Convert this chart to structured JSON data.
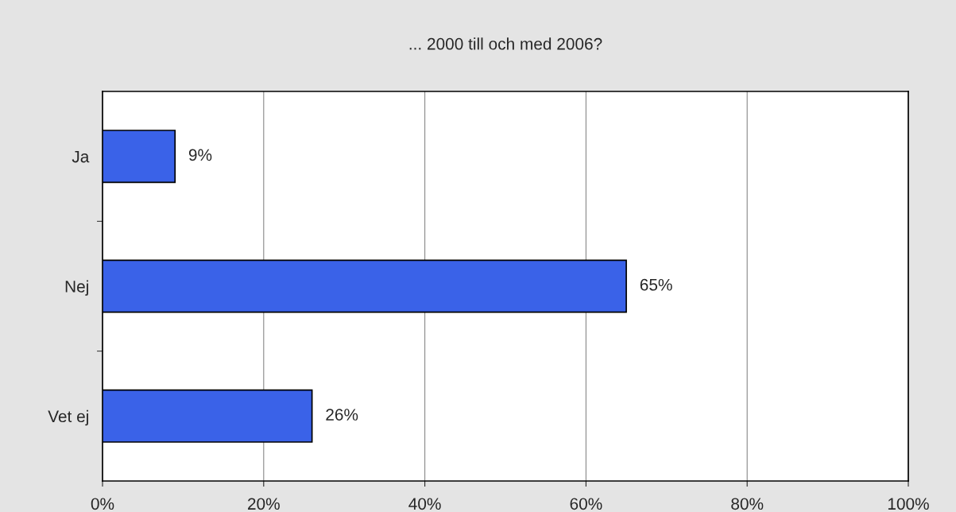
{
  "chart_data": {
    "type": "bar",
    "orientation": "horizontal",
    "title": "... 2000 till och med 2006?",
    "categories": [
      "Ja",
      "Nej",
      "Vet ej"
    ],
    "values": [
      9,
      65,
      26
    ],
    "value_labels": [
      "9%",
      "65%",
      "26%"
    ],
    "color": "#3a62e8",
    "xlim": [
      0,
      100
    ],
    "xticks": [
      {
        "value": 0,
        "label": "0%"
      },
      {
        "value": 20,
        "label": "20%"
      },
      {
        "value": 40,
        "label": "40%"
      },
      {
        "value": 60,
        "label": "60%"
      },
      {
        "value": 80,
        "label": "80%"
      },
      {
        "value": 100,
        "label": "100%"
      }
    ],
    "grid": "x",
    "legend": false
  }
}
